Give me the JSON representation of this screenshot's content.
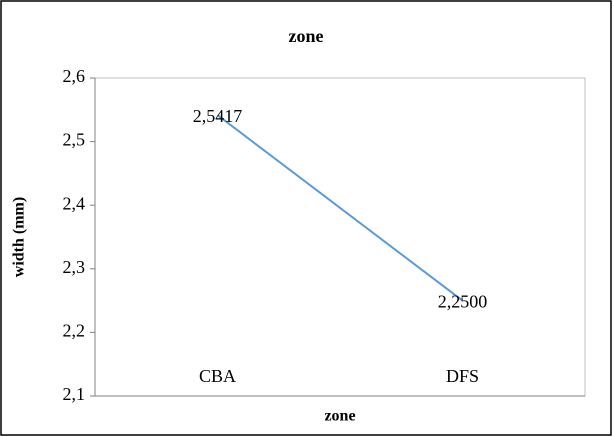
{
  "chart_data": {
    "type": "line",
    "title": "zone",
    "x_label": "zone",
    "y_label": "width (mm)",
    "categories": [
      "CBA",
      "DFS"
    ],
    "series": [
      {
        "name": "width",
        "color": "#5b9bd5",
        "values": [
          2.5417,
          2.25
        ],
        "value_labels": [
          "2,5417",
          "2,2500"
        ]
      }
    ],
    "ylim": [
      2.1,
      2.6
    ],
    "yticks": [
      {
        "value": 2.1,
        "label": "2,1"
      },
      {
        "value": 2.2,
        "label": "2,2"
      },
      {
        "value": 2.3,
        "label": "2,3"
      },
      {
        "value": 2.4,
        "label": "2,4"
      },
      {
        "value": 2.5,
        "label": "2,5"
      },
      {
        "value": 2.6,
        "label": "2,6"
      }
    ]
  }
}
